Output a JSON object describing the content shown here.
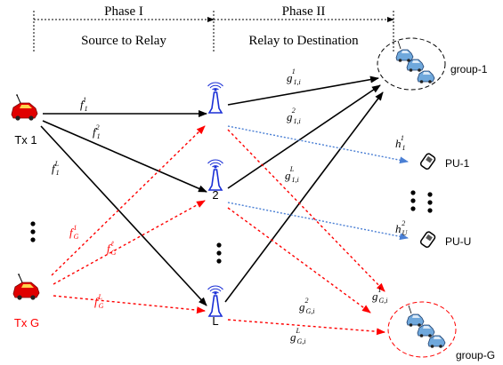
{
  "header": {
    "phase1_title": "Phase I",
    "phase1_subtitle": "Source to Relay",
    "phase2_title": "Phase II",
    "phase2_subtitle": "Relay to Destination"
  },
  "nodes": {
    "tx1": "Tx 1",
    "txg": "Tx G",
    "relay2": "2",
    "relayL": "L",
    "group1": "group-1",
    "groupG": "group-G",
    "pu1": "PU-1",
    "puU": "PU-U"
  },
  "channels": {
    "f1_1": {
      "base": "f",
      "sub": "1",
      "sup": "1"
    },
    "f1_2": {
      "base": "f",
      "sub": "1",
      "sup": "2"
    },
    "f1_L": {
      "base": "f",
      "sub": "1",
      "sup": "L"
    },
    "fG_1": {
      "base": "f",
      "sub": "G",
      "sup": "1"
    },
    "fG_l": {
      "base": "f",
      "sub": "G",
      "sup": "ℓ"
    },
    "fG_L": {
      "base": "f",
      "sub": "G",
      "sup": "L"
    },
    "g11": {
      "base": "g",
      "sub": "1,i",
      "sup": "1"
    },
    "g12": {
      "base": "g",
      "sub": "1,i",
      "sup": "2"
    },
    "g1L": {
      "base": "g",
      "sub": "1,i",
      "sup": "L"
    },
    "gG1": {
      "base": "g",
      "sub": "G,i",
      "sup": "1"
    },
    "gG2": {
      "base": "g",
      "sub": "G,i",
      "sup": "2"
    },
    "gGL": {
      "base": "g",
      "sub": "G,i",
      "sup": "L"
    },
    "h1": {
      "base": "h",
      "sub": "1",
      "sup": "1"
    },
    "hU": {
      "base": "h",
      "sub": "U",
      "sup": "2"
    }
  },
  "colors": {
    "black": "#000000",
    "red": "#ff0000",
    "blue": "#4a7fd4",
    "relay_blue": "#1a2fd6"
  }
}
